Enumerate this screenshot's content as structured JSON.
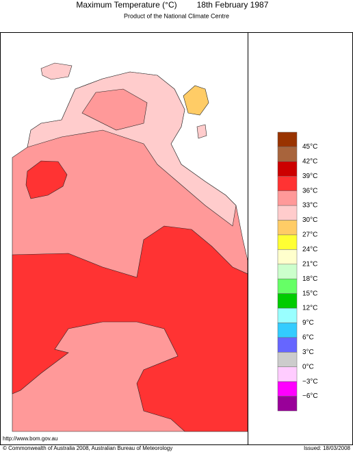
{
  "header": {
    "title": "Maximum Temperature (°C)",
    "date": "18th February 1987",
    "subtitle": "Product of the National Climate Centre"
  },
  "legend": {
    "colors": [
      "#993300",
      "#a8643c",
      "#cc0000",
      "#ff3333",
      "#ff9999",
      "#ffcccc",
      "#ffcc66",
      "#ffff33",
      "#ffffcc",
      "#ccffcc",
      "#66ff66",
      "#00cc00",
      "#99ffff",
      "#33ccff",
      "#6666ff",
      "#cccccc",
      "#ffccff",
      "#ff00ff",
      "#990099"
    ],
    "labels": [
      "45°C",
      "42°C",
      "39°C",
      "36°C",
      "33°C",
      "30°C",
      "27°C",
      "24°C",
      "21°C",
      "18°C",
      "15°C",
      "12°C",
      "9°C",
      "6°C",
      "3°C",
      "0°C",
      "−3°C",
      "−6°C"
    ]
  },
  "footer": {
    "url": "http://www.bom.gov.au",
    "copyright": "© Commonwealth of Australia 2008, Australian Bureau of Meteorology",
    "issued": "Issued: 18/03/2008"
  }
}
